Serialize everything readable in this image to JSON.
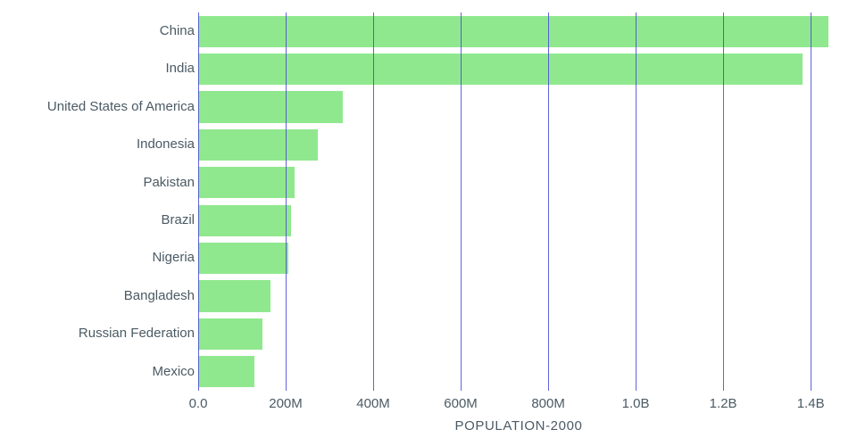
{
  "chart_data": {
    "type": "bar",
    "orientation": "horizontal",
    "title": "POPULATION-2000",
    "xlabel": "POPULATION-2000",
    "ylabel": "",
    "unit": "persons (values in millions)",
    "categories": [
      "China",
      "India",
      "United States of America",
      "Indonesia",
      "Pakistan",
      "Brazil",
      "Nigeria",
      "Bangladesh",
      "Russian Federation",
      "Mexico"
    ],
    "values": [
      1440,
      1382,
      331,
      273,
      221,
      212,
      206,
      165,
      146,
      129
    ],
    "xlim": [
      0,
      1465
    ],
    "xticks": [
      {
        "value": 0,
        "label": "0.0"
      },
      {
        "value": 200,
        "label": "200M"
      },
      {
        "value": 400,
        "label": "400M"
      },
      {
        "value": 600,
        "label": "600M"
      },
      {
        "value": 800,
        "label": "800M"
      },
      {
        "value": 1000,
        "label": "1.0B"
      },
      {
        "value": 1200,
        "label": "1.2B"
      },
      {
        "value": 1400,
        "label": "1.4B"
      }
    ],
    "grid": true,
    "legend": false,
    "colors": {
      "bar": "#90e88e",
      "grid": "#4646d8",
      "text": "#4b5a64",
      "background": "#ffffff"
    }
  }
}
